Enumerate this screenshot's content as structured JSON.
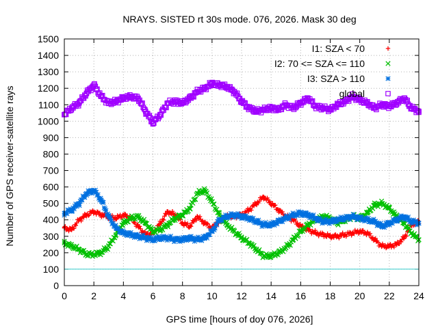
{
  "chart_data": {
    "type": "scatter",
    "title": "NRAYS. SISTED rt 30s mode. 076, 2026. Mask 30 deg",
    "xlabel": "GPS time [hours of doy 076, 2026]",
    "ylabel": "Number of GPS receiver-satellite rays",
    "xlim": [
      0,
      24
    ],
    "ylim": [
      0,
      1500
    ],
    "xticks": [
      0,
      2,
      4,
      6,
      8,
      10,
      12,
      14,
      16,
      18,
      20,
      22,
      24
    ],
    "yticks": [
      0,
      100,
      200,
      300,
      400,
      500,
      600,
      700,
      800,
      900,
      1000,
      1100,
      1200,
      1300,
      1400,
      1500
    ],
    "grid": true,
    "legend_position": "top-right",
    "threshold_line": {
      "y": 100,
      "color": "#33cccc"
    },
    "series": [
      {
        "name": "I1: SZA < 70",
        "marker": "+",
        "color": "#ff0000",
        "x": [
          0,
          0.5,
          1,
          1.5,
          2,
          2.5,
          3,
          3.5,
          4,
          4.5,
          5,
          5.5,
          6,
          6.5,
          7,
          7.5,
          8,
          8.5,
          9,
          9.5,
          10,
          10.5,
          11,
          11.5,
          12,
          12.5,
          13,
          13.5,
          14,
          14.5,
          15,
          15.5,
          16,
          16.5,
          17,
          17.5,
          18,
          18.5,
          19,
          19.5,
          20,
          20.5,
          21,
          21.5,
          22,
          22.5,
          23,
          23.5,
          24
        ],
        "y": [
          350,
          340,
          400,
          430,
          450,
          430,
          420,
          410,
          430,
          410,
          360,
          310,
          320,
          380,
          450,
          430,
          380,
          360,
          420,
          380,
          350,
          390,
          420,
          420,
          430,
          460,
          500,
          540,
          500,
          460,
          420,
          400,
          360,
          340,
          320,
          310,
          300,
          300,
          310,
          320,
          330,
          320,
          280,
          240,
          240,
          250,
          290,
          370,
          390
        ]
      },
      {
        "name": "I2: 70 <= SZA <= 110",
        "marker": "x",
        "color": "#00c000",
        "x": [
          0,
          0.5,
          1,
          1.5,
          2,
          2.5,
          3,
          3.5,
          4,
          4.5,
          5,
          5.5,
          6,
          6.5,
          7,
          7.5,
          8,
          8.5,
          9,
          9.5,
          10,
          10.5,
          11,
          11.5,
          12,
          12.5,
          13,
          13.5,
          14,
          14.5,
          15,
          15.5,
          16,
          16.5,
          17,
          17.5,
          18,
          18.5,
          19,
          19.5,
          20,
          20.5,
          21,
          21.5,
          22,
          22.5,
          23,
          23.5,
          24
        ],
        "y": [
          260,
          240,
          220,
          190,
          190,
          200,
          240,
          310,
          380,
          410,
          420,
          380,
          330,
          340,
          370,
          410,
          430,
          470,
          560,
          580,
          510,
          430,
          370,
          330,
          290,
          260,
          220,
          180,
          180,
          200,
          230,
          280,
          330,
          370,
          400,
          420,
          410,
          380,
          400,
          420,
          410,
          440,
          490,
          500,
          470,
          420,
          380,
          320,
          280
        ]
      },
      {
        "name": "I3: SZA > 110",
        "marker": "*",
        "color": "#0070e0",
        "x": [
          0,
          0.5,
          1,
          1.5,
          2,
          2.5,
          3,
          3.5,
          4,
          4.5,
          5,
          5.5,
          6,
          6.5,
          7,
          7.5,
          8,
          8.5,
          9,
          9.5,
          10,
          10.5,
          11,
          11.5,
          12,
          12.5,
          13,
          13.5,
          14,
          14.5,
          15,
          15.5,
          16,
          16.5,
          17,
          17.5,
          18,
          18.5,
          19,
          19.5,
          20,
          20.5,
          21,
          21.5,
          22,
          22.5,
          23,
          23.5,
          24
        ],
        "y": [
          440,
          460,
          500,
          560,
          580,
          520,
          420,
          350,
          320,
          310,
          300,
          290,
          280,
          290,
          290,
          280,
          280,
          290,
          280,
          290,
          330,
          400,
          420,
          430,
          420,
          410,
          390,
          370,
          370,
          390,
          410,
          430,
          440,
          430,
          410,
          390,
          390,
          400,
          410,
          420,
          410,
          400,
          390,
          360,
          380,
          400,
          420,
          390,
          380
        ]
      },
      {
        "name": "global",
        "marker": "open-square",
        "color": "#a000ff",
        "x": [
          0,
          0.5,
          1,
          1.5,
          2,
          2.5,
          3,
          3.5,
          4,
          4.5,
          5,
          5.5,
          6,
          6.5,
          7,
          7.5,
          8,
          8.5,
          9,
          9.5,
          10,
          10.5,
          11,
          11.5,
          12,
          12.5,
          13,
          13.5,
          14,
          14.5,
          15,
          15.5,
          16,
          16.5,
          17,
          17.5,
          18,
          18.5,
          19,
          19.5,
          20,
          20.5,
          21,
          21.5,
          22,
          22.5,
          23,
          23.5,
          24
        ],
        "y": [
          1040,
          1080,
          1110,
          1170,
          1220,
          1150,
          1110,
          1120,
          1140,
          1150,
          1140,
          1060,
          990,
          1040,
          1110,
          1120,
          1110,
          1140,
          1180,
          1200,
          1230,
          1220,
          1210,
          1180,
          1120,
          1080,
          1060,
          1070,
          1080,
          1070,
          1100,
          1080,
          1110,
          1140,
          1090,
          1080,
          1070,
          1100,
          1120,
          1150,
          1130,
          1110,
          1080,
          1100,
          1090,
          1110,
          1140,
          1080,
          1060
        ]
      }
    ]
  }
}
